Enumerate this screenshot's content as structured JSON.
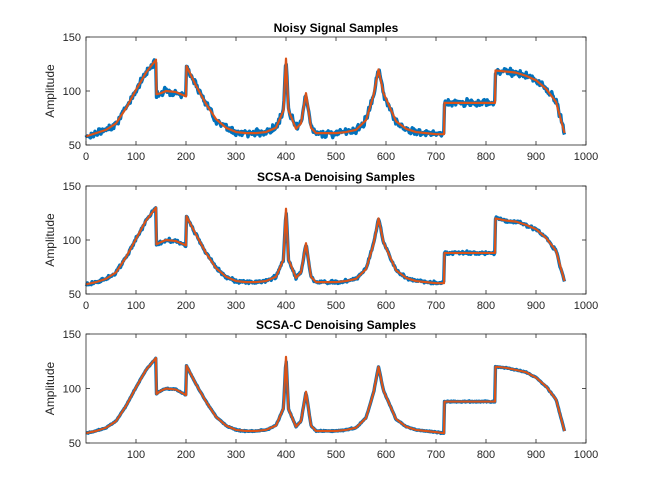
{
  "colors": {
    "noisy": "#0072BD",
    "clean": "#D95319",
    "axis": "#262626"
  },
  "chart_data": [
    {
      "type": "line",
      "title": "Noisy Signal Samples",
      "ylabel": "Amplitude",
      "xlabel": "",
      "xlim": [
        0,
        1000
      ],
      "ylim": [
        50,
        150
      ],
      "xticks": [
        0,
        100,
        200,
        300,
        400,
        500,
        600,
        700,
        800,
        900,
        1000
      ],
      "yticks": [
        50,
        100,
        150
      ],
      "noise": 3.2,
      "series": [
        {
          "role": "noisy",
          "x": [
            0,
            20,
            40,
            60,
            80,
            100,
            120,
            140,
            141,
            150,
            160,
            180,
            200,
            201,
            220,
            240,
            260,
            280,
            300,
            320,
            340,
            360,
            380,
            395,
            400,
            405,
            420,
            430,
            440,
            450,
            460,
            480,
            500,
            520,
            540,
            560,
            575,
            585,
            595,
            620,
            640,
            660,
            680,
            700,
            716,
            717,
            740,
            760,
            780,
            800,
            818,
            819,
            840,
            860,
            880,
            900,
            920,
            940,
            957
          ],
          "y": [
            58,
            61,
            64,
            70,
            84,
            101,
            117,
            129,
            97,
            98,
            100,
            99,
            95,
            123,
            105,
            88,
            74,
            66,
            62,
            61,
            61,
            62,
            66,
            82,
            130,
            82,
            65,
            70,
            98,
            66,
            61,
            61,
            61,
            62,
            64,
            73,
            96,
            120,
            98,
            72,
            65,
            62,
            61,
            60,
            60,
            89,
            89,
            89,
            89,
            89,
            89,
            119,
            118,
            117,
            114,
            110,
            102,
            90,
            61
          ]
        },
        {
          "role": "clean",
          "x": [
            0,
            20,
            40,
            60,
            80,
            100,
            120,
            140,
            141,
            150,
            160,
            180,
            200,
            201,
            220,
            240,
            260,
            280,
            300,
            320,
            340,
            360,
            380,
            395,
            400,
            405,
            420,
            430,
            440,
            450,
            460,
            480,
            500,
            520,
            540,
            560,
            575,
            585,
            595,
            620,
            640,
            660,
            680,
            700,
            716,
            717,
            740,
            760,
            780,
            800,
            818,
            819,
            840,
            860,
            880,
            900,
            920,
            940,
            957
          ],
          "y": [
            58,
            61,
            64,
            70,
            84,
            101,
            117,
            129,
            97,
            98,
            100,
            99,
            95,
            123,
            105,
            88,
            74,
            66,
            62,
            61,
            61,
            62,
            66,
            82,
            130,
            82,
            65,
            70,
            98,
            66,
            61,
            61,
            61,
            62,
            64,
            73,
            96,
            120,
            98,
            72,
            65,
            62,
            61,
            60,
            60,
            89,
            89,
            89,
            89,
            89,
            89,
            119,
            118,
            117,
            114,
            110,
            102,
            90,
            61
          ]
        }
      ]
    },
    {
      "type": "line",
      "title": "SCSA-a Denoising Samples",
      "ylabel": "Amplitude",
      "xlabel": "",
      "xlim": [
        0,
        1000
      ],
      "ylim": [
        50,
        150
      ],
      "xticks": [
        0,
        100,
        200,
        300,
        400,
        500,
        600,
        700,
        800,
        900,
        1000
      ],
      "yticks": [
        50,
        100,
        150
      ],
      "noise": 1.5,
      "series": [
        {
          "role": "noisy",
          "x": [
            0,
            20,
            40,
            60,
            80,
            100,
            120,
            140,
            141,
            150,
            160,
            180,
            200,
            201,
            220,
            240,
            260,
            280,
            300,
            320,
            340,
            360,
            380,
            395,
            400,
            405,
            420,
            430,
            440,
            450,
            460,
            480,
            500,
            520,
            540,
            560,
            575,
            585,
            595,
            620,
            640,
            660,
            680,
            700,
            716,
            717,
            740,
            760,
            780,
            800,
            818,
            819,
            840,
            860,
            880,
            900,
            920,
            940,
            957
          ],
          "y": [
            59,
            61,
            64,
            70,
            84,
            101,
            118,
            130,
            96,
            98,
            100,
            99,
            95,
            122,
            105,
            88,
            74,
            66,
            62,
            61,
            61,
            62,
            66,
            82,
            129,
            82,
            65,
            70,
            97,
            66,
            61,
            61,
            61,
            62,
            64,
            73,
            96,
            120,
            98,
            72,
            65,
            62,
            61,
            60,
            60,
            88,
            88,
            88,
            88,
            88,
            88,
            120,
            118,
            117,
            114,
            110,
            102,
            90,
            62
          ]
        },
        {
          "role": "clean",
          "x": [
            0,
            20,
            40,
            60,
            80,
            100,
            120,
            140,
            141,
            150,
            160,
            180,
            200,
            201,
            220,
            240,
            260,
            280,
            300,
            320,
            340,
            360,
            380,
            395,
            400,
            405,
            420,
            430,
            440,
            450,
            460,
            480,
            500,
            520,
            540,
            560,
            575,
            585,
            595,
            620,
            640,
            660,
            680,
            700,
            716,
            717,
            740,
            760,
            780,
            800,
            818,
            819,
            840,
            860,
            880,
            900,
            920,
            940,
            957
          ],
          "y": [
            59,
            61,
            64,
            70,
            84,
            101,
            118,
            130,
            96,
            98,
            100,
            99,
            95,
            122,
            105,
            88,
            74,
            66,
            62,
            61,
            61,
            62,
            66,
            82,
            129,
            82,
            65,
            70,
            97,
            66,
            61,
            61,
            61,
            62,
            64,
            73,
            96,
            120,
            98,
            72,
            65,
            62,
            61,
            60,
            60,
            88,
            88,
            88,
            88,
            88,
            88,
            120,
            118,
            117,
            114,
            110,
            102,
            90,
            62
          ]
        }
      ]
    },
    {
      "type": "line",
      "title": "SCSA-C Denoising Samples",
      "ylabel": "Amplitude",
      "xlabel": "",
      "xlim": [
        0,
        1000
      ],
      "ylim": [
        50,
        150
      ],
      "xticks": [
        100,
        200,
        300,
        400,
        500,
        600,
        700,
        800,
        900,
        1000
      ],
      "yticks": [
        50,
        100,
        150
      ],
      "noise": 0.5,
      "series": [
        {
          "role": "noisy",
          "x": [
            0,
            20,
            40,
            60,
            80,
            100,
            120,
            140,
            141,
            150,
            160,
            180,
            200,
            201,
            220,
            240,
            260,
            280,
            300,
            320,
            340,
            360,
            380,
            395,
            400,
            405,
            420,
            430,
            440,
            450,
            460,
            480,
            500,
            520,
            540,
            560,
            575,
            585,
            595,
            620,
            640,
            660,
            680,
            700,
            716,
            717,
            740,
            760,
            780,
            800,
            818,
            819,
            840,
            860,
            880,
            900,
            920,
            940,
            957
          ],
          "y": [
            59,
            61,
            64,
            70,
            84,
            101,
            117,
            128,
            95,
            98,
            100,
            99,
            94,
            121,
            104,
            88,
            74,
            66,
            62,
            61,
            61,
            62,
            66,
            82,
            129,
            81,
            65,
            70,
            97,
            66,
            61,
            61,
            61,
            62,
            64,
            73,
            96,
            120,
            98,
            72,
            65,
            62,
            61,
            60,
            59,
            88,
            88,
            88,
            88,
            88,
            88,
            120,
            119,
            117,
            115,
            110,
            102,
            90,
            61
          ]
        },
        {
          "role": "clean",
          "x": [
            0,
            20,
            40,
            60,
            80,
            100,
            120,
            140,
            141,
            150,
            160,
            180,
            200,
            201,
            220,
            240,
            260,
            280,
            300,
            320,
            340,
            360,
            380,
            395,
            400,
            405,
            420,
            430,
            440,
            450,
            460,
            480,
            500,
            520,
            540,
            560,
            575,
            585,
            595,
            620,
            640,
            660,
            680,
            700,
            716,
            717,
            740,
            760,
            780,
            800,
            818,
            819,
            840,
            860,
            880,
            900,
            920,
            940,
            957
          ],
          "y": [
            59,
            61,
            64,
            70,
            84,
            101,
            117,
            128,
            95,
            98,
            100,
            99,
            94,
            121,
            104,
            88,
            74,
            66,
            62,
            61,
            61,
            62,
            66,
            82,
            129,
            81,
            65,
            70,
            97,
            66,
            61,
            61,
            61,
            62,
            64,
            73,
            96,
            120,
            98,
            72,
            65,
            62,
            61,
            60,
            59,
            88,
            88,
            88,
            88,
            88,
            88,
            120,
            119,
            117,
            115,
            110,
            102,
            90,
            61
          ]
        }
      ]
    }
  ]
}
